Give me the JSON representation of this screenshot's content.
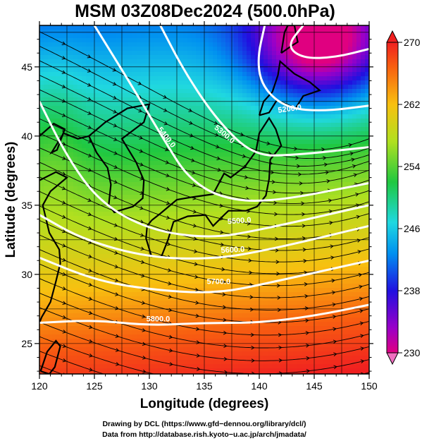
{
  "title": "MSM 03Z08Dec2024 (500.0hPa)",
  "map": {
    "xlabel": "Longitude (degrees)",
    "ylabel": "Latitude  (degrees)",
    "lon_range": [
      120,
      150
    ],
    "lat_range": [
      22.8,
      48
    ],
    "lon_ticks": [
      "120",
      "125",
      "130",
      "135",
      "140",
      "145",
      "150"
    ],
    "lat_ticks": [
      "25",
      "30",
      "35",
      "40",
      "45"
    ],
    "colorbar": {
      "range": [
        230,
        270
      ],
      "ticks": [
        "270",
        "262",
        "254",
        "246",
        "238",
        "230"
      ]
    },
    "contours": [
      {
        "label": "5200.0"
      },
      {
        "label": "5300.0"
      },
      {
        "label": "5400.0"
      },
      {
        "label": "5500.0"
      },
      {
        "label": "5600.0"
      },
      {
        "label": "5700.0"
      },
      {
        "label": "5800.0"
      }
    ]
  },
  "credits": {
    "line1": "Drawing by DCL (https://www.gfd−dennou.org/library/dcl/)",
    "line2": "Data from http://database.rish.kyoto−u.ac.jp/arch/jmadata/"
  }
}
